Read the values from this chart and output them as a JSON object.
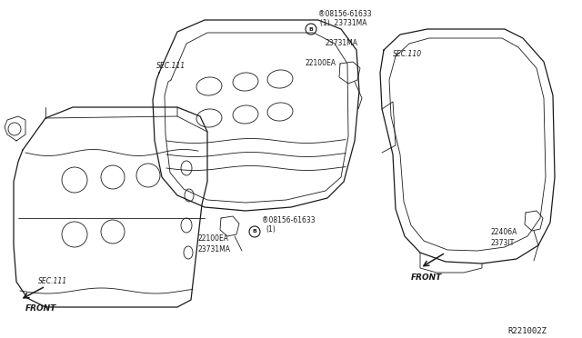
{
  "bg_color": "#ffffff",
  "line_color": "#1a1a1a",
  "fig_width": 6.4,
  "fig_height": 3.72,
  "dpi": 100,
  "diagram_ref": "R221002Z",
  "labels": {
    "sec110": "SEC.110",
    "sec111_top": "SEC.111",
    "sec111_bot": "SEC.111",
    "bolt_label_top": "®08156-61633",
    "bolt_label_top2": "(1)  23731MA",
    "bolt_label_bot": "®08156-61633",
    "bolt_label_bot2": "(1)",
    "sensor_top_ref": "22100EA",
    "sensor_top_ref2": "23731MA",
    "sensor_bot_ref": "22100EA",
    "sensor_bot_ref2": "23731MA",
    "sensor_right_1": "2373lT",
    "sensor_right_2": "22406A",
    "front_left": "FRONT",
    "front_right": "FRONT"
  }
}
